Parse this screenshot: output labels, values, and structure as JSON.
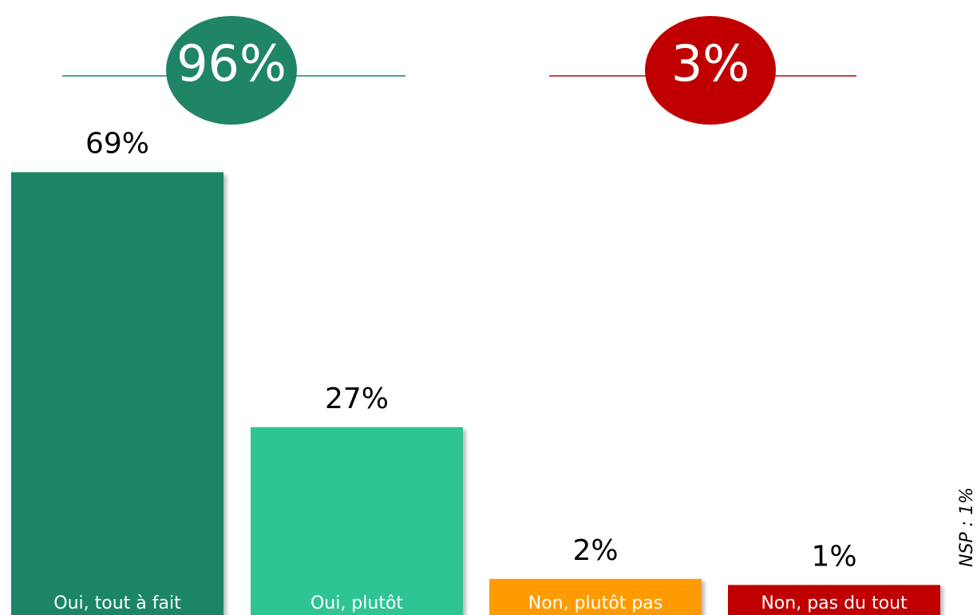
{
  "chart_data": {
    "type": "bar",
    "categories": [
      "Oui, tout à fait",
      "Oui, plutôt",
      "Non, plutôt pas",
      "Non, pas du tout"
    ],
    "values": [
      69,
      27,
      2,
      1
    ],
    "value_labels": [
      "69%",
      "27%",
      "2%",
      "1%"
    ],
    "colors": [
      "#1f8566",
      "#2ec494",
      "#ff9b00",
      "#c00000"
    ],
    "summaries": [
      {
        "value": 96,
        "label": "96%",
        "color": "#1f8566"
      },
      {
        "value": 3,
        "label": "3%",
        "color": "#c00000"
      }
    ],
    "note": "NSP : 1%"
  }
}
